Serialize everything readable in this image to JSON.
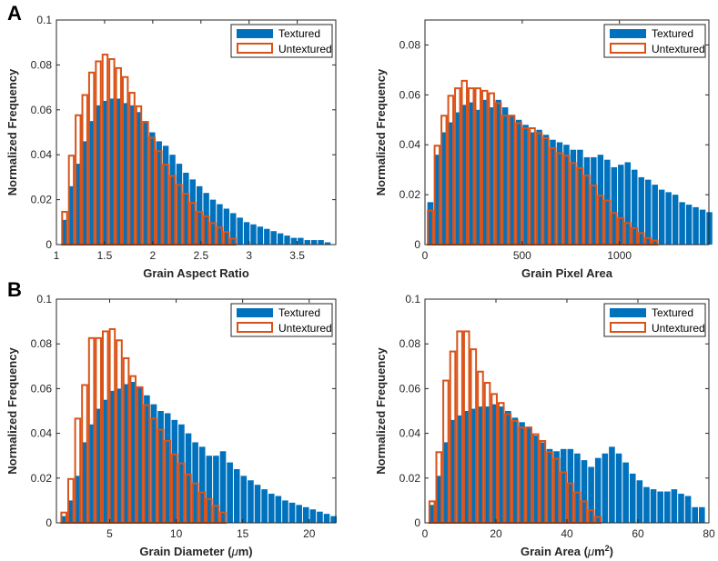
{
  "figure": {
    "panel_labels": [
      "A",
      "B"
    ]
  },
  "colors": {
    "textured": "#0072BD",
    "untextured": "#D95319"
  },
  "chart_data": [
    {
      "type": "bar",
      "title": "",
      "xlabel": "Grain Aspect Ratio",
      "ylabel": "Normalized Frequency",
      "xlim": [
        1,
        3.9
      ],
      "ylim": [
        0,
        0.1
      ],
      "xticks": [
        1,
        1.5,
        2,
        2.5,
        3,
        3.5
      ],
      "xtick_labels": [
        "1",
        "1.5",
        "2",
        "2.5",
        "3",
        "3.5"
      ],
      "yticks": [
        0,
        0.02,
        0.04,
        0.06,
        0.08,
        0.1
      ],
      "ytick_labels": [
        "0",
        "0.02",
        "0.04",
        "0.06",
        "0.08",
        "0.1"
      ],
      "legend": [
        "Textured",
        "Untextured"
      ],
      "legend_position": "top-right",
      "series": [
        {
          "name": "Textured",
          "x0": 1.05,
          "binwidth": 0.07,
          "values": [
            0.011,
            0.026,
            0.036,
            0.046,
            0.055,
            0.062,
            0.064,
            0.065,
            0.065,
            0.063,
            0.062,
            0.059,
            0.055,
            0.05,
            0.046,
            0.044,
            0.04,
            0.036,
            0.032,
            0.029,
            0.026,
            0.023,
            0.02,
            0.018,
            0.016,
            0.014,
            0.012,
            0.01,
            0.009,
            0.008,
            0.007,
            0.006,
            0.005,
            0.004,
            0.003,
            0.003,
            0.002,
            0.002,
            0.002,
            0.001
          ]
        },
        {
          "name": "Untextured",
          "x0": 1.05,
          "binwidth": 0.07,
          "values": [
            0.015,
            0.04,
            0.058,
            0.067,
            0.077,
            0.082,
            0.085,
            0.083,
            0.079,
            0.075,
            0.068,
            0.062,
            0.055,
            0.048,
            0.042,
            0.036,
            0.031,
            0.027,
            0.023,
            0.019,
            0.015,
            0.013,
            0.01,
            0.008,
            0.006,
            0.003
          ]
        }
      ]
    },
    {
      "type": "bar",
      "title": "",
      "xlabel": "Grain Pixel Area",
      "ylabel": "Normalized Frequency",
      "xlim": [
        0,
        1460
      ],
      "ylim": [
        0,
        0.09
      ],
      "xticks": [
        0,
        500,
        1000
      ],
      "xtick_labels": [
        "0",
        "500",
        "1000"
      ],
      "yticks": [
        0,
        0.02,
        0.04,
        0.06,
        0.08
      ],
      "ytick_labels": [
        "0",
        "0.02",
        "0.04",
        "0.06",
        "0.08"
      ],
      "legend": [
        "Textured",
        "Untextured"
      ],
      "legend_position": "top-right",
      "series": [
        {
          "name": "Textured",
          "x0": 10,
          "binwidth": 35,
          "values": [
            0.017,
            0.036,
            0.045,
            0.049,
            0.053,
            0.056,
            0.057,
            0.054,
            0.058,
            0.055,
            0.058,
            0.055,
            0.052,
            0.05,
            0.048,
            0.045,
            0.046,
            0.044,
            0.042,
            0.041,
            0.04,
            0.038,
            0.038,
            0.035,
            0.035,
            0.036,
            0.034,
            0.031,
            0.032,
            0.033,
            0.03,
            0.027,
            0.026,
            0.024,
            0.022,
            0.021,
            0.02,
            0.017,
            0.016,
            0.015,
            0.014,
            0.013
          ]
        },
        {
          "name": "Untextured",
          "x0": 10,
          "binwidth": 35,
          "values": [
            0.014,
            0.04,
            0.052,
            0.06,
            0.063,
            0.066,
            0.063,
            0.063,
            0.062,
            0.061,
            0.057,
            0.052,
            0.052,
            0.049,
            0.047,
            0.047,
            0.045,
            0.043,
            0.039,
            0.037,
            0.036,
            0.033,
            0.031,
            0.028,
            0.024,
            0.02,
            0.018,
            0.013,
            0.011,
            0.009,
            0.007,
            0.005,
            0.003,
            0.002
          ]
        }
      ]
    },
    {
      "type": "bar",
      "title": "",
      "xlabel": "Grain Diameter (",
      "xlabel_greek": "μ",
      "xlabel_unit_tail": "m)",
      "ylabel": "Normalized Frequency",
      "xlim": [
        1,
        22
      ],
      "ylim": [
        0,
        0.1
      ],
      "xticks": [
        5,
        10,
        15,
        20
      ],
      "xtick_labels": [
        "5",
        "10",
        "15",
        "20"
      ],
      "yticks": [
        0,
        0.02,
        0.04,
        0.06,
        0.08,
        0.1
      ],
      "ytick_labels": [
        "0",
        "0.02",
        "0.04",
        "0.06",
        "0.08",
        "0.1"
      ],
      "legend": [
        "Textured",
        "Untextured"
      ],
      "legend_position": "top-right",
      "series": [
        {
          "name": "Textured",
          "x0": 1.3,
          "binwidth": 0.52,
          "values": [
            0.003,
            0.01,
            0.021,
            0.036,
            0.044,
            0.051,
            0.055,
            0.059,
            0.06,
            0.062,
            0.063,
            0.061,
            0.057,
            0.053,
            0.05,
            0.049,
            0.046,
            0.044,
            0.04,
            0.036,
            0.034,
            0.03,
            0.03,
            0.032,
            0.027,
            0.024,
            0.021,
            0.019,
            0.017,
            0.015,
            0.013,
            0.012,
            0.01,
            0.009,
            0.008,
            0.007,
            0.006,
            0.005,
            0.004,
            0.003
          ]
        },
        {
          "name": "Untextured",
          "x0": 1.3,
          "binwidth": 0.52,
          "values": [
            0.005,
            0.02,
            0.047,
            0.062,
            0.083,
            0.083,
            0.086,
            0.087,
            0.082,
            0.074,
            0.066,
            0.061,
            0.053,
            0.047,
            0.042,
            0.037,
            0.031,
            0.027,
            0.022,
            0.018,
            0.014,
            0.011,
            0.008,
            0.005
          ]
        }
      ]
    },
    {
      "type": "bar",
      "title": "",
      "xlabel": "Grain Area (",
      "xlabel_greek": "μ",
      "xlabel_unit_tail": "m",
      "xlabel_superscript": "2",
      "xlabel_close": ")",
      "ylabel": "Normalized Frequency",
      "xlim": [
        0,
        80
      ],
      "ylim": [
        0,
        0.1
      ],
      "xticks": [
        0,
        20,
        40,
        60,
        80
      ],
      "xtick_labels": [
        "0",
        "20",
        "40",
        "60",
        "80"
      ],
      "yticks": [
        0,
        0.02,
        0.04,
        0.06,
        0.08,
        0.1
      ],
      "ytick_labels": [
        "0",
        "0.02",
        "0.04",
        "0.06",
        "0.08",
        "0.1"
      ],
      "legend": [
        "Textured",
        "Untextured"
      ],
      "legend_position": "top-right",
      "series": [
        {
          "name": "Textured",
          "x0": 1,
          "binwidth": 1.95,
          "values": [
            0.008,
            0.021,
            0.036,
            0.046,
            0.048,
            0.05,
            0.051,
            0.052,
            0.052,
            0.053,
            0.052,
            0.05,
            0.047,
            0.045,
            0.043,
            0.039,
            0.036,
            0.033,
            0.032,
            0.033,
            0.033,
            0.031,
            0.028,
            0.025,
            0.029,
            0.031,
            0.034,
            0.031,
            0.027,
            0.022,
            0.019,
            0.016,
            0.015,
            0.014,
            0.014,
            0.015,
            0.013,
            0.012,
            0.007,
            0.007
          ]
        },
        {
          "name": "Untextured",
          "x0": 1,
          "binwidth": 1.95,
          "values": [
            0.01,
            0.032,
            0.064,
            0.077,
            0.086,
            0.086,
            0.078,
            0.068,
            0.063,
            0.058,
            0.054,
            0.049,
            0.046,
            0.043,
            0.043,
            0.04,
            0.037,
            0.032,
            0.029,
            0.023,
            0.018,
            0.014,
            0.01,
            0.006,
            0.003
          ]
        }
      ]
    }
  ]
}
